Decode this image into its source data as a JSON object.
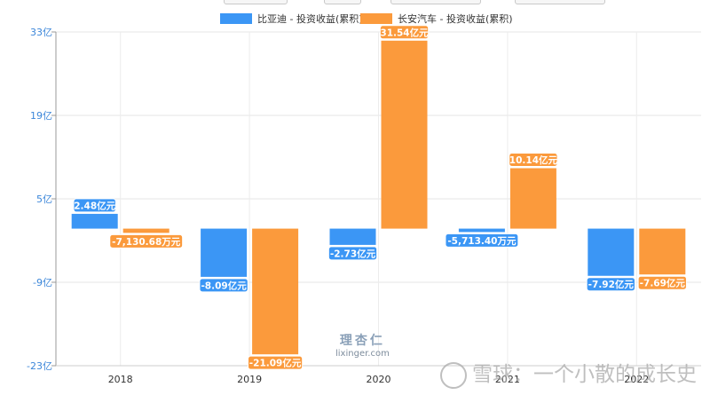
{
  "legend": {
    "series1_label": "比亚迪 - 投资收益(累积)",
    "series2_label": "长安汽车 - 投资收益(累积)"
  },
  "watermarks": {
    "logo_cn": "理杏仁",
    "logo_en": "lixinger.com",
    "snowball_text": "雪球：一个小散的成长史"
  },
  "colors": {
    "series1": "#3b96f5",
    "series2": "#fb9a3c",
    "axis_label": "#3b86d9",
    "grid": "#e6e6e6"
  },
  "chart_data": {
    "type": "bar",
    "title": "",
    "xlabel": "",
    "ylabel": "",
    "unit": "亿元",
    "categories": [
      "2018",
      "2019",
      "2020",
      "2021",
      "2022"
    ],
    "ylim": [
      -23,
      33
    ],
    "yticks": [
      33,
      19,
      5,
      -9,
      -23
    ],
    "ytick_labels": [
      "33亿",
      "19亿",
      "5亿",
      "-9亿",
      "-23亿"
    ],
    "grid": true,
    "legend_position": "top-center",
    "series": [
      {
        "name": "比亚迪 - 投资收益(累积)",
        "values": [
          2.48,
          -8.09,
          -2.73,
          -0.57134,
          -7.92
        ],
        "labels": [
          "2.48亿元",
          "-8.09亿元",
          "-2.73亿元",
          "-5,713.40万元",
          "-7.92亿元"
        ]
      },
      {
        "name": "长安汽车 - 投资收益(累积)",
        "values": [
          -0.713068,
          -21.09,
          31.54,
          10.14,
          -7.69
        ],
        "labels": [
          "-7,130.68万元",
          "-21.09亿元",
          "31.54亿元",
          "10.14亿元",
          "-7.69亿元"
        ]
      }
    ]
  }
}
